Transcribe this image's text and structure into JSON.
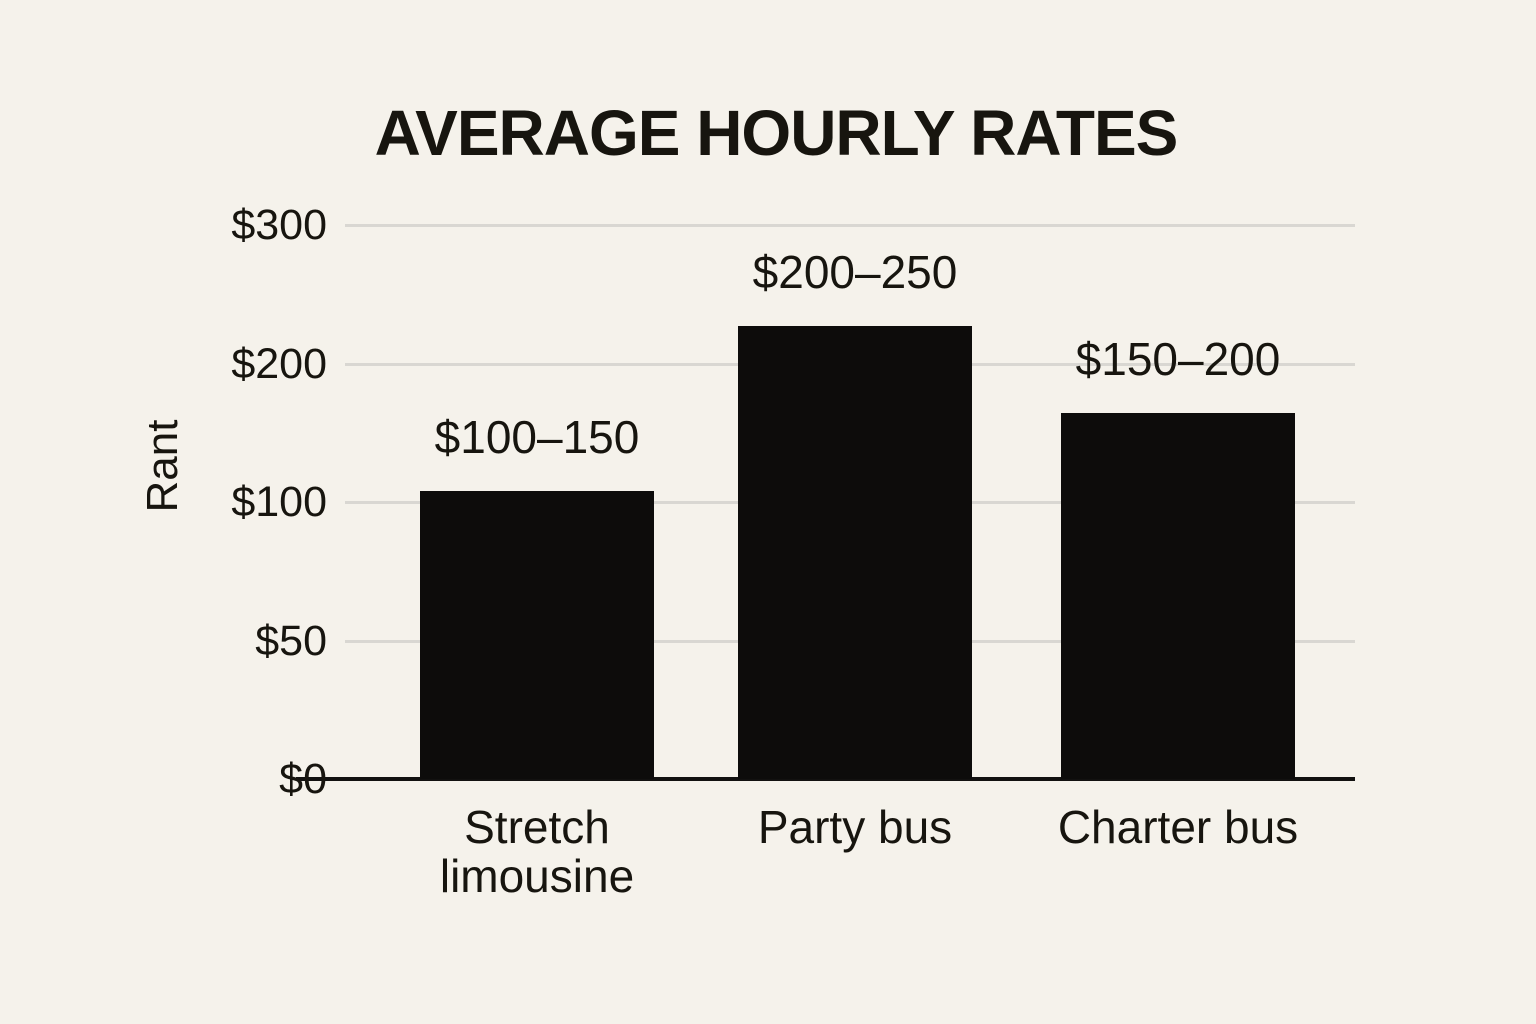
{
  "page": {
    "background": "#f5f2eb"
  },
  "chart_data": {
    "type": "bar",
    "title": "AVERAGE HOURLY RATES",
    "ylabel": "Rant",
    "xlabel": "",
    "categories": [
      "Stretch limousine",
      "Party bus",
      "Charter bus"
    ],
    "value_labels": [
      "$100–150",
      "$200–250",
      "$150–200"
    ],
    "values": [
      108,
      227,
      164
    ],
    "y_ticks": [
      300,
      200,
      100,
      50,
      0
    ],
    "y_tick_labels": [
      "$300",
      "$200",
      "$100",
      "$50",
      "$0"
    ],
    "ylim": [
      0,
      300
    ],
    "grid": true,
    "legend": false,
    "axis_note": "y tick values 300/200/100/50/0 are evenly spaced (non-linear stylized scale); bar tops sit at approx 108, 227 and 164 on that scale",
    "colors": {
      "background": "#f5f2eb",
      "bar": "#0d0c0b",
      "gridline": "#d9d7d2",
      "axis": "#121110",
      "text": "#17150f"
    }
  }
}
